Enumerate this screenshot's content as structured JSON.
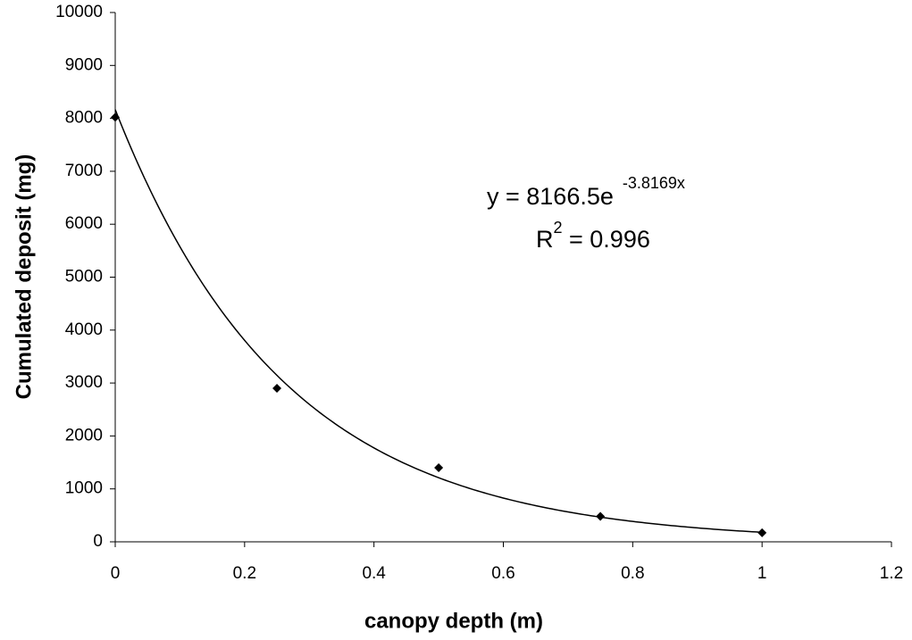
{
  "chart_data": {
    "type": "scatter",
    "xlabel": "canopy depth  (m)",
    "ylabel": "Cumulated deposit  (mg)",
    "x": [
      0,
      0.25,
      0.5,
      0.75,
      1
    ],
    "series": [
      {
        "color": "#000000",
        "values": [
          8020,
          2900,
          1400,
          480,
          170
        ]
      }
    ],
    "trendline": {
      "type": "exponential",
      "coefficient": 8166.5,
      "exponent": -3.8169,
      "color": "#000000"
    },
    "annotations": {
      "equation": "y = 8166.5e",
      "equation_exponent": "-3.8169x",
      "r_label": "R",
      "r_power": "2",
      "r_value": " = 0.996"
    },
    "xlim": [
      0,
      1.2
    ],
    "xticks": [
      0,
      0.2,
      0.4,
      0.6,
      0.8,
      1,
      1.2
    ],
    "ylim": [
      0,
      10000
    ],
    "yticks": [
      0,
      1000,
      2000,
      3000,
      4000,
      5000,
      6000,
      7000,
      8000,
      9000,
      10000
    ],
    "grid": false
  }
}
